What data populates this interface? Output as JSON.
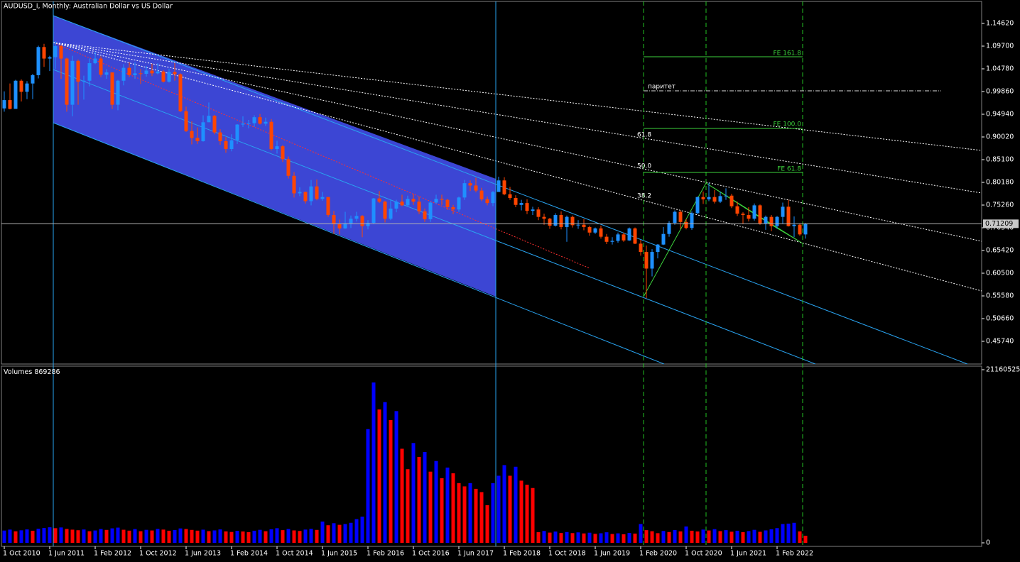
{
  "chart_data": [
    {
      "type": "candlestick",
      "title": "AUDUSD_i, Monthly:  Australian Dollar vs US Dollar",
      "up_color": "#1e90ff",
      "down_color": "#ff4500",
      "ylim": [
        0.4082,
        1.1923
      ],
      "yticks": [
        {
          "value": 1.1462,
          "label": "1.14620"
        },
        {
          "value": 1.097,
          "label": "1.09700"
        },
        {
          "value": 1.0478,
          "label": "1.04780"
        },
        {
          "value": 0.9986,
          "label": "0.99860"
        },
        {
          "value": 0.9494,
          "label": "0.94940"
        },
        {
          "value": 0.9002,
          "label": "0.90020"
        },
        {
          "value": 0.851,
          "label": "0.85100"
        },
        {
          "value": 0.8018,
          "label": "0.80180"
        },
        {
          "value": 0.7526,
          "label": "0.75260"
        },
        {
          "value": 0.7034,
          "label": "0.70340"
        },
        {
          "value": 0.6542,
          "label": "0.65420"
        },
        {
          "value": 0.605,
          "label": "0.60500"
        },
        {
          "value": 0.5558,
          "label": "0.55580"
        },
        {
          "value": 0.5066,
          "label": "0.50660"
        },
        {
          "value": 0.4574,
          "label": "0.45740"
        }
      ],
      "annotations": [
        "FE 161.8",
        "FE 100.0",
        "FE 61.8",
        "паритет",
        "61.8",
        "50.0",
        "38.2"
      ],
      "open": [
        0.962,
        0.98,
        0.961,
        1.022,
        0.998,
        1.016,
        1.034,
        1.095,
        1.07,
        1.073,
        1.097,
        1.07,
        0.97,
        1.065,
        1.02,
        1.022,
        1.06,
        1.07,
        1.035,
        1.04,
        0.97,
        1.022,
        1.05,
        1.034,
        1.038,
        1.037,
        1.044,
        1.038,
        1.042,
        1.02,
        1.041,
        1.036,
        0.956,
        0.913,
        0.898,
        0.891,
        0.932,
        0.946,
        0.91,
        0.891,
        0.874,
        0.893,
        0.927,
        0.929,
        0.93,
        0.943,
        0.929,
        0.933,
        0.874,
        0.88,
        0.852,
        0.816,
        0.778,
        0.781,
        0.761,
        0.793,
        0.766,
        0.77,
        0.731,
        0.711,
        0.702,
        0.713,
        0.723,
        0.729,
        0.707,
        0.714,
        0.767,
        0.76,
        0.723,
        0.745,
        0.76,
        0.752,
        0.766,
        0.76,
        0.739,
        0.722,
        0.758,
        0.766,
        0.764,
        0.748,
        0.743,
        0.769,
        0.8,
        0.795,
        0.784,
        0.765,
        0.757,
        0.781,
        0.806,
        0.776,
        0.768,
        0.753,
        0.757,
        0.74,
        0.743,
        0.727,
        0.723,
        0.708,
        0.731,
        0.705,
        0.727,
        0.709,
        0.71,
        0.705,
        0.693,
        0.702,
        0.684,
        0.673,
        0.675,
        0.689,
        0.676,
        0.702,
        0.669,
        0.651,
        0.615,
        0.651,
        0.667,
        0.69,
        0.714,
        0.738,
        0.716,
        0.703,
        0.735,
        0.77,
        0.765,
        0.77,
        0.76,
        0.772,
        0.773,
        0.75,
        0.734,
        0.731,
        0.723,
        0.752,
        0.713,
        0.727,
        0.707,
        0.727,
        0.749,
        0.707,
        0.71,
        0.689
      ],
      "high": [
        0.999,
        1.016,
        1.024,
        1.025,
        1.021,
        1.037,
        1.098,
        1.102,
        1.076,
        1.108,
        1.1,
        1.072,
        1.076,
        1.068,
        1.033,
        1.07,
        1.085,
        1.075,
        1.047,
        1.04,
        1.024,
        1.058,
        1.062,
        1.062,
        1.047,
        1.054,
        1.059,
        1.06,
        1.045,
        1.048,
        1.06,
        1.038,
        0.966,
        0.934,
        0.921,
        0.947,
        0.975,
        0.948,
        0.917,
        0.9,
        0.906,
        0.928,
        0.945,
        0.937,
        0.947,
        0.95,
        0.942,
        0.939,
        0.892,
        0.883,
        0.858,
        0.824,
        0.791,
        0.782,
        0.807,
        0.808,
        0.781,
        0.77,
        0.74,
        0.721,
        0.738,
        0.73,
        0.738,
        0.731,
        0.72,
        0.768,
        0.783,
        0.762,
        0.764,
        0.764,
        0.775,
        0.773,
        0.777,
        0.771,
        0.745,
        0.761,
        0.775,
        0.775,
        0.766,
        0.753,
        0.771,
        0.807,
        0.806,
        0.812,
        0.79,
        0.771,
        0.783,
        0.814,
        0.813,
        0.792,
        0.774,
        0.764,
        0.765,
        0.749,
        0.748,
        0.734,
        0.725,
        0.735,
        0.739,
        0.73,
        0.73,
        0.72,
        0.722,
        0.708,
        0.704,
        0.708,
        0.69,
        0.683,
        0.693,
        0.693,
        0.704,
        0.704,
        0.677,
        0.665,
        0.657,
        0.668,
        0.705,
        0.718,
        0.741,
        0.741,
        0.722,
        0.739,
        0.771,
        0.782,
        0.801,
        0.785,
        0.782,
        0.789,
        0.777,
        0.76,
        0.737,
        0.748,
        0.756,
        0.754,
        0.73,
        0.731,
        0.729,
        0.758,
        0.764,
        0.728,
        0.713,
        0.714
      ],
      "low": [
        0.955,
        0.96,
        0.962,
        0.977,
        0.982,
        0.982,
        1.027,
        1.052,
        1.043,
        1.048,
        1.026,
        0.955,
        0.945,
        0.97,
        0.981,
        1.01,
        1.058,
        1.03,
        1.026,
        0.961,
        0.958,
        1.012,
        1.03,
        1.026,
        1.015,
        1.031,
        1.032,
        1.036,
        1.018,
        1.018,
        1.022,
        0.954,
        0.911,
        0.884,
        0.885,
        0.89,
        0.932,
        0.906,
        0.883,
        0.866,
        0.869,
        0.885,
        0.922,
        0.919,
        0.922,
        0.927,
        0.924,
        0.871,
        0.864,
        0.846,
        0.81,
        0.769,
        0.772,
        0.756,
        0.752,
        0.763,
        0.762,
        0.727,
        0.69,
        0.689,
        0.701,
        0.703,
        0.717,
        0.683,
        0.7,
        0.711,
        0.757,
        0.715,
        0.72,
        0.737,
        0.75,
        0.749,
        0.753,
        0.733,
        0.716,
        0.716,
        0.755,
        0.753,
        0.742,
        0.733,
        0.738,
        0.764,
        0.783,
        0.78,
        0.761,
        0.752,
        0.75,
        0.781,
        0.774,
        0.764,
        0.748,
        0.741,
        0.733,
        0.731,
        0.72,
        0.71,
        0.701,
        0.706,
        0.7,
        0.673,
        0.704,
        0.701,
        0.698,
        0.686,
        0.69,
        0.68,
        0.668,
        0.667,
        0.671,
        0.673,
        0.675,
        0.668,
        0.643,
        0.551,
        0.598,
        0.637,
        0.666,
        0.684,
        0.71,
        0.701,
        0.7,
        0.699,
        0.733,
        0.755,
        0.761,
        0.756,
        0.757,
        0.764,
        0.746,
        0.729,
        0.711,
        0.717,
        0.719,
        0.71,
        0.699,
        0.696,
        0.701,
        0.712,
        0.706,
        0.683,
        0.686,
        0.68
      ],
      "close": [
        0.98,
        0.961,
        1.022,
        0.998,
        1.016,
        1.034,
        1.095,
        1.07,
        1.073,
        1.097,
        1.07,
        0.97,
        1.065,
        1.02,
        1.022,
        1.06,
        1.07,
        1.035,
        1.04,
        0.97,
        1.022,
        1.05,
        1.034,
        1.038,
        1.037,
        1.044,
        1.038,
        1.042,
        1.02,
        1.041,
        1.036,
        0.956,
        0.913,
        0.898,
        0.891,
        0.932,
        0.946,
        0.91,
        0.891,
        0.874,
        0.893,
        0.927,
        0.929,
        0.93,
        0.943,
        0.929,
        0.933,
        0.874,
        0.88,
        0.852,
        0.816,
        0.778,
        0.781,
        0.761,
        0.793,
        0.766,
        0.77,
        0.731,
        0.711,
        0.702,
        0.713,
        0.723,
        0.729,
        0.707,
        0.714,
        0.767,
        0.76,
        0.723,
        0.745,
        0.76,
        0.752,
        0.766,
        0.76,
        0.739,
        0.722,
        0.758,
        0.766,
        0.764,
        0.748,
        0.743,
        0.769,
        0.8,
        0.795,
        0.784,
        0.765,
        0.757,
        0.781,
        0.806,
        0.776,
        0.768,
        0.753,
        0.757,
        0.74,
        0.743,
        0.727,
        0.723,
        0.708,
        0.731,
        0.705,
        0.727,
        0.709,
        0.71,
        0.705,
        0.693,
        0.702,
        0.684,
        0.673,
        0.675,
        0.689,
        0.676,
        0.702,
        0.669,
        0.651,
        0.615,
        0.651,
        0.667,
        0.69,
        0.714,
        0.738,
        0.716,
        0.703,
        0.735,
        0.77,
        0.765,
        0.77,
        0.76,
        0.772,
        0.773,
        0.75,
        0.734,
        0.731,
        0.723,
        0.752,
        0.713,
        0.727,
        0.707,
        0.727,
        0.749,
        0.707,
        0.71,
        0.689,
        0.71209
      ]
    },
    {
      "type": "bar",
      "title": "Volumes",
      "up_color": "#0000ff",
      "down_color": "#ff0000",
      "ylim": [
        0,
        21160525
      ],
      "yticks": [
        21160525,
        0
      ],
      "xticks": [
        {
          "value": 0,
          "label": "1 Oct 2010"
        },
        {
          "value": 8,
          "label": "1 Jun 2011"
        },
        {
          "value": 16,
          "label": "1 Feb 2012"
        },
        {
          "value": 24,
          "label": "1 Oct 2012"
        },
        {
          "value": 32,
          "label": "1 Jun 2013"
        },
        {
          "value": 40,
          "label": "1 Feb 2014"
        },
        {
          "value": 48,
          "label": "1 Oct 2014"
        },
        {
          "value": 56,
          "label": "1 Jun 2015"
        },
        {
          "value": 64,
          "label": "1 Feb 2016"
        },
        {
          "value": 72,
          "label": "1 Oct 2016"
        },
        {
          "value": 80,
          "label": "1 Jun 2017"
        },
        {
          "value": 88,
          "label": "1 Feb 2018"
        },
        {
          "value": 96,
          "label": "1 Oct 2018"
        },
        {
          "value": 104,
          "label": "1 Jun 2019"
        },
        {
          "value": 112,
          "label": "1 Feb 2020"
        },
        {
          "value": 120,
          "label": "1 Oct 2020"
        },
        {
          "value": 128,
          "label": "1 Jun 2021"
        },
        {
          "value": 136,
          "label": "1 Feb 2022"
        }
      ],
      "values": [
        1500000,
        1620000,
        1410000,
        1530000,
        1640000,
        1480000,
        1720000,
        1810000,
        1900000,
        1790000,
        1880000,
        1700000,
        1610000,
        1540000,
        1630000,
        1420000,
        1510000,
        1690000,
        1580000,
        1770000,
        1860000,
        1600000,
        1490000,
        1680000,
        1420000,
        1590000,
        1510000,
        1700000,
        1620000,
        1480000,
        1570000,
        1760000,
        1690000,
        1580000,
        1490000,
        1610000,
        1430000,
        1520000,
        1640000,
        1400000,
        1330000,
        1470000,
        1390000,
        1310000,
        1480000,
        1590000,
        1420000,
        1660000,
        1790000,
        1550000,
        1690000,
        1520000,
        1450000,
        1620000,
        1710000,
        1580000,
        2600000,
        2150000,
        2400000,
        2200000,
        2300000,
        2450000,
        2900000,
        3200000,
        13900000,
        19600000,
        16300000,
        17200000,
        15000000,
        16100000,
        11500000,
        9000000,
        12200000,
        10500000,
        11100000,
        8700000,
        10000000,
        7900000,
        9200000,
        8500000,
        7300000,
        6900000,
        7300000,
        6600000,
        6200000,
        4600000,
        7300000,
        8200000,
        9500000,
        8200000,
        9300000,
        7600000,
        7100000,
        6700000,
        1300000,
        1450000,
        1250000,
        1380000,
        1200000,
        1320000,
        1190000,
        1280000,
        1150000,
        1240000,
        1100000,
        1170000,
        1290000,
        1080000,
        1160000,
        1050000,
        1210000,
        1130000,
        2300000,
        1550000,
        1420000,
        1180000,
        1450000,
        1320000,
        1560000,
        1400000,
        2000000,
        1480000,
        1390000,
        1620000,
        1510000,
        1670000,
        1430000,
        1550000,
        1360000,
        1480000,
        1310000,
        1440000,
        1590000,
        1350000,
        1520000,
        1660000,
        1800000,
        2300000,
        2350000,
        2450000,
        1400000,
        869286
      ]
    }
  ]
}
